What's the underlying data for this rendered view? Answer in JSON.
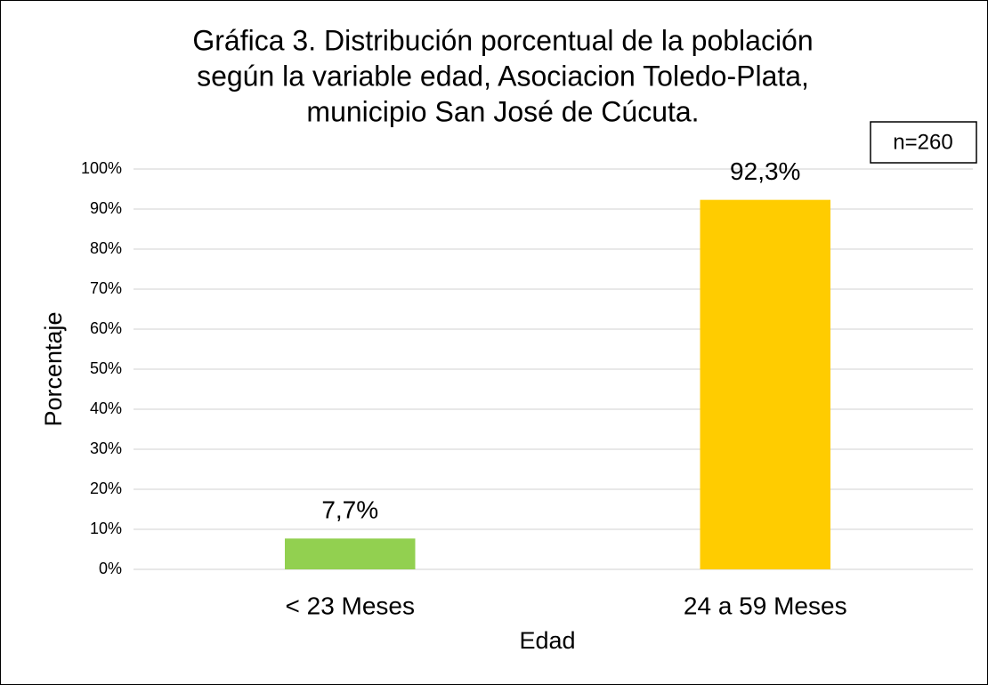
{
  "chart_data": {
    "type": "bar",
    "title": [
      "Gráfica 3. Distribución porcentual de la población",
      "según la variable edad, Asociacion Toledo-Plata,",
      "municipio San José de Cúcuta."
    ],
    "annotation": "n=260",
    "x_label": "Edad",
    "y_label": "Porcentaje",
    "categories": [
      "< 23 Meses",
      "24 a 59 Meses"
    ],
    "values": [
      7.7,
      92.3
    ],
    "value_labels": [
      "7,7%",
      "92,3%"
    ],
    "colors": [
      "#92d050",
      "#ffcc00"
    ],
    "ylim": [
      0,
      100
    ],
    "yticks": [
      {
        "value": 0,
        "label": "0%"
      },
      {
        "value": 10,
        "label": "10%"
      },
      {
        "value": 20,
        "label": "20%"
      },
      {
        "value": 30,
        "label": "30%"
      },
      {
        "value": 40,
        "label": "40%"
      },
      {
        "value": 50,
        "label": "50%"
      },
      {
        "value": 60,
        "label": "60%"
      },
      {
        "value": 70,
        "label": "70%"
      },
      {
        "value": 80,
        "label": "80%"
      },
      {
        "value": 90,
        "label": "90%"
      },
      {
        "value": 100,
        "label": "100%"
      }
    ],
    "grid": true
  }
}
